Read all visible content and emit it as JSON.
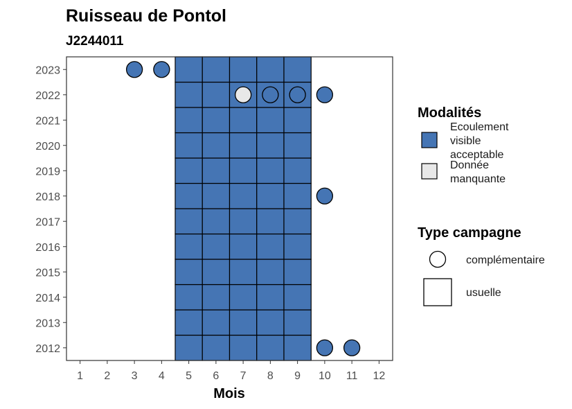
{
  "chart_data": {
    "type": "heatmap",
    "title": "Ruisseau de Pontol",
    "subtitle": "J2244011",
    "xlabel": "Mois",
    "ylabel": "",
    "x_ticks": [
      "1",
      "2",
      "3",
      "4",
      "5",
      "6",
      "7",
      "8",
      "9",
      "10",
      "11",
      "12"
    ],
    "y_ticks": [
      "2012",
      "2013",
      "2014",
      "2015",
      "2016",
      "2017",
      "2018",
      "2019",
      "2020",
      "2021",
      "2022",
      "2023"
    ],
    "xlim": [
      0.5,
      12.5
    ],
    "ylim": [
      2011.5,
      2023.5
    ],
    "grid": false,
    "colors": {
      "Ecoulement visible acceptable": "#4575b4",
      "Donnée manquante": "#e8e8e8"
    },
    "usuelle": [
      {
        "year": 2012,
        "months": [
          5,
          6,
          7,
          8,
          9
        ],
        "modalite": "Ecoulement visible acceptable"
      },
      {
        "year": 2013,
        "months": [
          5,
          6,
          7,
          8,
          9
        ],
        "modalite": "Ecoulement visible acceptable"
      },
      {
        "year": 2014,
        "months": [
          5,
          6,
          7,
          8,
          9
        ],
        "modalite": "Ecoulement visible acceptable"
      },
      {
        "year": 2015,
        "months": [
          5,
          6,
          7,
          8,
          9
        ],
        "modalite": "Ecoulement visible acceptable"
      },
      {
        "year": 2016,
        "months": [
          5,
          6,
          7,
          8,
          9
        ],
        "modalite": "Ecoulement visible acceptable"
      },
      {
        "year": 2017,
        "months": [
          5,
          6,
          7,
          8,
          9
        ],
        "modalite": "Ecoulement visible acceptable"
      },
      {
        "year": 2018,
        "months": [
          5,
          6,
          7,
          8,
          9
        ],
        "modalite": "Ecoulement visible acceptable"
      },
      {
        "year": 2019,
        "months": [
          5,
          6,
          7,
          8,
          9
        ],
        "modalite": "Ecoulement visible acceptable"
      },
      {
        "year": 2020,
        "months": [
          5,
          6,
          7,
          8,
          9
        ],
        "modalite": "Ecoulement visible acceptable"
      },
      {
        "year": 2021,
        "months": [
          5,
          6,
          7,
          8,
          9
        ],
        "modalite": "Ecoulement visible acceptable"
      },
      {
        "year": 2022,
        "months": [
          5,
          6,
          7,
          8,
          9
        ],
        "modalite": "Ecoulement visible acceptable"
      },
      {
        "year": 2023,
        "months": [
          5,
          6,
          7,
          8,
          9
        ],
        "modalite": "Ecoulement visible acceptable"
      }
    ],
    "complementaire": [
      {
        "year": 2023,
        "month": 3,
        "modalite": "Ecoulement visible acceptable"
      },
      {
        "year": 2023,
        "month": 4,
        "modalite": "Ecoulement visible acceptable"
      },
      {
        "year": 2022,
        "month": 7,
        "modalite": "Donnée manquante"
      },
      {
        "year": 2022,
        "month": 8,
        "modalite": "Ecoulement visible acceptable"
      },
      {
        "year": 2022,
        "month": 9,
        "modalite": "Ecoulement visible acceptable"
      },
      {
        "year": 2022,
        "month": 10,
        "modalite": "Ecoulement visible acceptable"
      },
      {
        "year": 2018,
        "month": 10,
        "modalite": "Ecoulement visible acceptable"
      },
      {
        "year": 2012,
        "month": 10,
        "modalite": "Ecoulement visible acceptable"
      },
      {
        "year": 2012,
        "month": 11,
        "modalite": "Ecoulement visible acceptable"
      }
    ],
    "legend": {
      "position": "right",
      "modalites_title": "Modalités",
      "modalites": [
        {
          "lines": [
            "Ecoulement",
            "visible",
            "acceptable"
          ],
          "color": "#4575b4"
        },
        {
          "lines": [
            "Donnée",
            "manquante"
          ],
          "color": "#e8e8e8"
        }
      ],
      "type_title": "Type campagne",
      "types": [
        {
          "label": "complémentaire",
          "shape": "circle"
        },
        {
          "label": "usuelle",
          "shape": "square"
        }
      ]
    }
  }
}
